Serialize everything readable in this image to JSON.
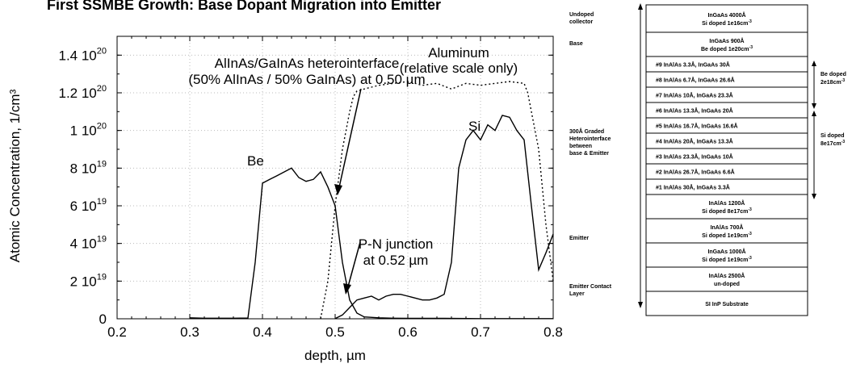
{
  "title": "First SSMBE Growth: Base Dopant Migration into Emitter",
  "chart_data": {
    "type": "line",
    "xlabel": "depth, µm",
    "ylabel": "Atomic Concentration, 1/cm³",
    "xlim": [
      0.2,
      0.8
    ],
    "ylim": [
      0,
      1.5e+20
    ],
    "x_ticks": [
      "0.2",
      "0.3",
      "0.4",
      "0.5",
      "0.6",
      "0.7",
      "0.8"
    ],
    "y_ticks": [
      {
        "base": "0",
        "exp": ""
      },
      {
        "base": "2 10",
        "exp": "19"
      },
      {
        "base": "4 10",
        "exp": "19"
      },
      {
        "base": "6 10",
        "exp": "19"
      },
      {
        "base": "8 10",
        "exp": "19"
      },
      {
        "base": "1 10",
        "exp": "20"
      },
      {
        "base": "1.2 10",
        "exp": "20"
      },
      {
        "base": "1.4 10",
        "exp": "20"
      }
    ],
    "series": [
      {
        "name": "Be",
        "style": "solid",
        "x": [
          0.3,
          0.32,
          0.34,
          0.36,
          0.38,
          0.39,
          0.4,
          0.41,
          0.42,
          0.43,
          0.44,
          0.45,
          0.46,
          0.47,
          0.48,
          0.49,
          0.5,
          0.51,
          0.52,
          0.53,
          0.54,
          0.56,
          0.58,
          0.6,
          0.65,
          0.7,
          0.75,
          0.8
        ],
        "y": [
          5e+17,
          3e+17,
          3e+17,
          3e+17,
          4e+17,
          3e+19,
          7.2e+19,
          7.4e+19,
          7.6e+19,
          7.8e+19,
          8e+19,
          7.5e+19,
          7.3e+19,
          7.4e+19,
          7.8e+19,
          7e+19,
          6e+19,
          3e+19,
          1e+19,
          3e+18,
          1e+18,
          5e+17,
          3e+17,
          2e+17,
          2e+17,
          1e+17,
          1e+17,
          1e+17
        ]
      },
      {
        "name": "Si",
        "style": "solid",
        "x": [
          0.5,
          0.51,
          0.52,
          0.53,
          0.54,
          0.55,
          0.56,
          0.57,
          0.58,
          0.59,
          0.6,
          0.61,
          0.62,
          0.63,
          0.64,
          0.65,
          0.66,
          0.67,
          0.68,
          0.69,
          0.7,
          0.71,
          0.72,
          0.73,
          0.74,
          0.75,
          0.76,
          0.77,
          0.78,
          0.79,
          0.8
        ],
        "y": [
          1e+17,
          2e+18,
          6e+18,
          1e+19,
          1.1e+19,
          1.2e+19,
          1e+19,
          1.2e+19,
          1.3e+19,
          1.3e+19,
          1.2e+19,
          1.1e+19,
          1e+19,
          1e+19,
          1.1e+19,
          1.3e+19,
          3e+19,
          8e+19,
          9.5e+19,
          1e+20,
          9.5e+19,
          1.03e+20,
          1e+20,
          1.08e+20,
          1.07e+20,
          1e+20,
          9.5e+19,
          6e+19,
          2.6e+19,
          3.5e+19,
          4.5e+19
        ]
      },
      {
        "name": "Aluminum",
        "style": "dotted",
        "x": [
          0.48,
          0.49,
          0.5,
          0.51,
          0.52,
          0.525,
          0.53,
          0.54,
          0.55,
          0.56,
          0.58,
          0.6,
          0.62,
          0.64,
          0.66,
          0.68,
          0.7,
          0.72,
          0.74,
          0.76,
          0.765,
          0.77,
          0.78,
          0.79,
          0.8
        ],
        "y": [
          0,
          2e+19,
          6e+19,
          9e+19,
          1.1e+20,
          1.18e+20,
          1.21e+20,
          1.22e+20,
          1.23e+20,
          1.24e+20,
          1.25e+20,
          1.26e+20,
          1.24e+20,
          1.25e+20,
          1.22e+20,
          1.25e+20,
          1.24e+20,
          1.25e+20,
          1.26e+20,
          1.25e+20,
          1.2e+20,
          1.1e+20,
          9e+19,
          5e+19,
          2e+19
        ]
      }
    ],
    "labels": {
      "be": "Be",
      "si": "Si",
      "aluminum": "Aluminum",
      "aluminum_note": "(relative scale only)",
      "hetero_line1": "AlInAs/GaInAs heterointerface",
      "hetero_line2": "(50% AlInAs / 50% GaInAs) at 0.50 µm",
      "pn_line1": "P-N junction",
      "pn_line2": "at 0.52 µm"
    }
  },
  "layer_stack": {
    "layers": [
      {
        "line1": "InGaAs  4000Å",
        "line2": "Si doped  1e16cm",
        "sup": "-3"
      },
      {
        "line1": "InGaAs  900Å",
        "line2": "Be doped 1e20cm",
        "sup": "-3"
      },
      {
        "line1": "#9  InAlAs 3.3Å,  InGaAs 30Å",
        "line2": "",
        "sup": ""
      },
      {
        "line1": "#8  InAlAs 6.7Å,  InGaAs 26.6Å",
        "line2": "",
        "sup": ""
      },
      {
        "line1": "#7  InAlAs 10Å,  InGaAs 23.3Å",
        "line2": "",
        "sup": ""
      },
      {
        "line1": "#6  InAlAs 13.3Å,  InGaAs 20Å",
        "line2": "",
        "sup": ""
      },
      {
        "line1": "#5  InAlAs 16.7Å,  InGaAs 16.6Å",
        "line2": "",
        "sup": ""
      },
      {
        "line1": "#4  InAlAs 20Å,  InGaAs 13.3Å",
        "line2": "",
        "sup": ""
      },
      {
        "line1": "#3  InAlAs 23.3Å,  InGaAs 10Å",
        "line2": "",
        "sup": ""
      },
      {
        "line1": "#2  InAlAs 26.7Å,  InGaAs 6.6Å",
        "line2": "",
        "sup": ""
      },
      {
        "line1": "#1  InAlAs 30Å,  InGaAs 3.3Å",
        "line2": "",
        "sup": ""
      },
      {
        "line1": "InAlAs 1200Å",
        "line2": "Si doped 8e17cm",
        "sup": "-3"
      },
      {
        "line1": "InAlAs 700Å",
        "line2": "Si doped 1e19cm",
        "sup": "-3"
      },
      {
        "line1": "InGaAs  1000Å",
        "line2": "Si doped  1e19cm",
        "sup": "-3"
      },
      {
        "line1": "InAlAs  2500Å",
        "line2": "un-doped",
        "sup": ""
      },
      {
        "line1": "SI  InP  Substrate",
        "line2": "",
        "sup": ""
      }
    ],
    "left_labels": {
      "collector_1": "Undoped",
      "collector_2": "collector",
      "base": "Base",
      "graded_1": "300Å Graded",
      "graded_2": "Heterointerface",
      "graded_3": "between",
      "graded_4": "base & Emitter",
      "emitter": "Emitter",
      "contact_1": "Emitter Contact",
      "contact_2": "Layer"
    },
    "right_labels": {
      "be_1": "Be doped",
      "be_2": "2e18cm",
      "be_sup": "-3",
      "si_1": "Si doped",
      "si_2": "8e17cm",
      "si_sup": "-3"
    }
  }
}
